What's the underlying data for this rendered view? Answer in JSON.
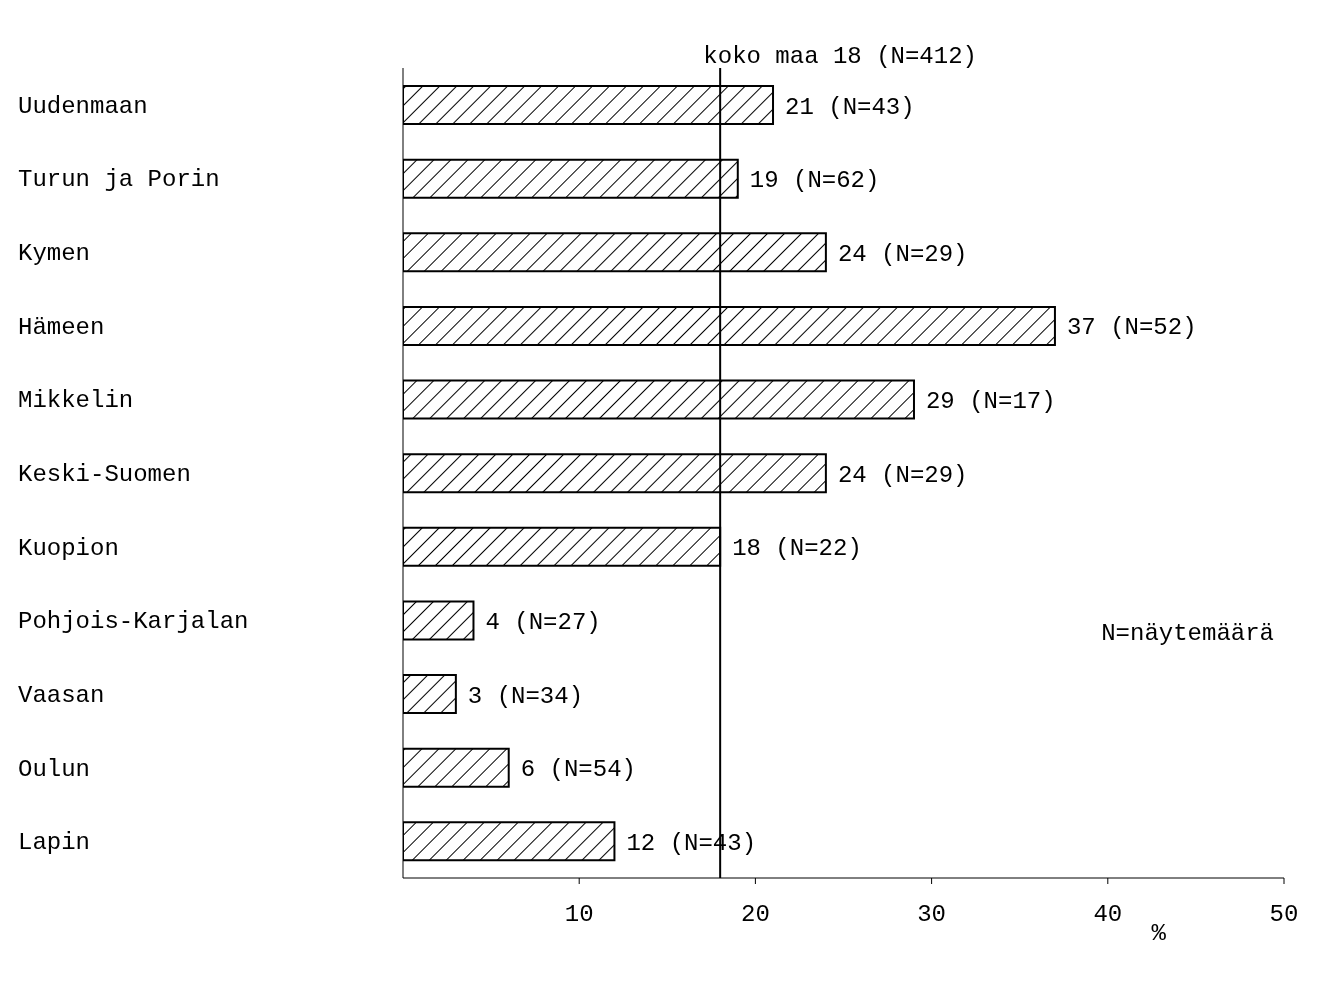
{
  "chart_data": {
    "type": "bar",
    "orientation": "horizontal",
    "xlabel": "%",
    "categories": [
      "Uudenmaan",
      "Turun ja Porin",
      "Kymen",
      "Hämeen",
      "Mikkelin",
      "Keski-Suomen",
      "Kuopion",
      "Pohjois-Karjalan",
      "Vaasan",
      "Oulun",
      "Lapin"
    ],
    "values": [
      21,
      19,
      24,
      37,
      29,
      24,
      18,
      4,
      3,
      6,
      12
    ],
    "value_labels": [
      "21  (N=43)",
      "19  (N=62)",
      "24  (N=29)",
      "37  (N=52)",
      "29  (N=17)",
      "24  (N=29)",
      "18  (N=22)",
      "4  (N=27)",
      "3  (N=34)",
      "6  (N=54)",
      "12  (N=43)"
    ],
    "color": "#000000",
    "xlim": [
      0,
      50
    ],
    "xticks": [
      10,
      20,
      30,
      40,
      50
    ],
    "grid": false,
    "ref_lines": [
      {
        "axis": "x",
        "value": 18,
        "label": "koko maa 18  (N=412)",
        "color": "#000000"
      }
    ],
    "annotations": [
      "N=näytemäärä"
    ]
  }
}
